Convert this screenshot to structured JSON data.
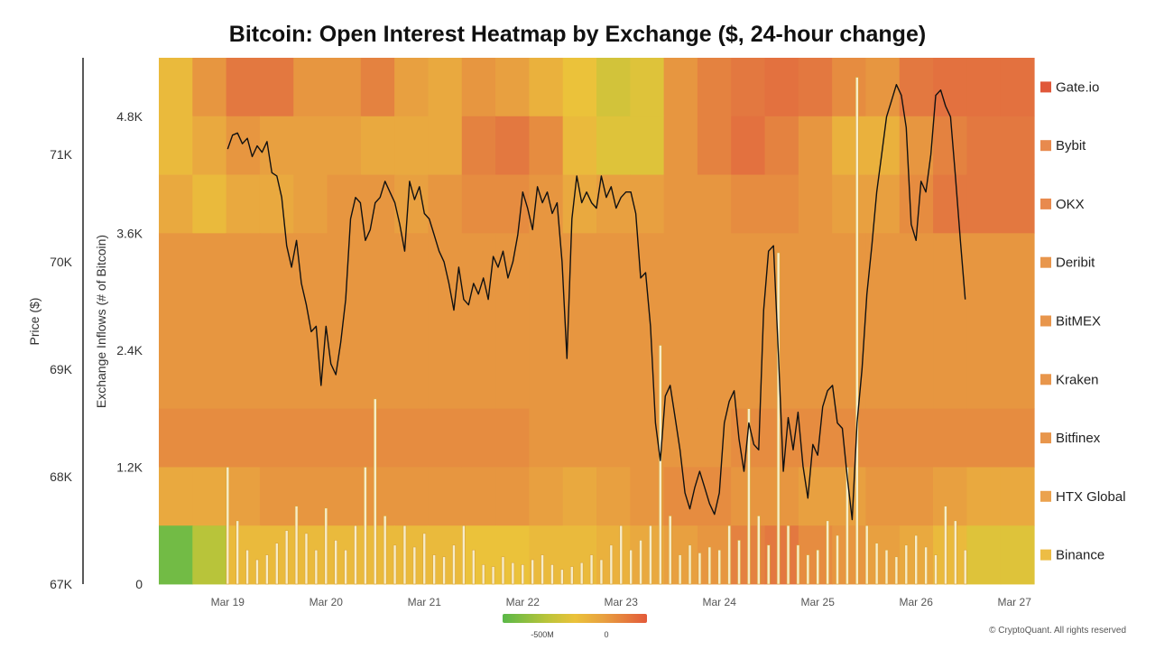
{
  "chart_data": {
    "type": "heatmap",
    "title": "Bitcoin: Open Interest Heatmap by Exchange ($, 24-hour change)",
    "y_left_label": "Price ($)",
    "y_left_ticks": [
      "67K",
      "68K",
      "69K",
      "70K",
      "71K"
    ],
    "y_left_range": [
      67000,
      71900
    ],
    "y_mid_label": "Exchange Inflows (# of Bitcoin)",
    "y_mid_ticks": [
      "0",
      "1.2K",
      "2.4K",
      "3.6K",
      "4.8K"
    ],
    "y_mid_range": [
      0,
      5400
    ],
    "x_ticks": [
      "Mar 19",
      "Mar 20",
      "Mar 21",
      "Mar 22",
      "Mar 23",
      "Mar 24",
      "Mar 25",
      "Mar 26",
      "Mar 27"
    ],
    "x_range": [
      18.3,
      27.2
    ],
    "exchanges": [
      "Gate.io",
      "Bybit",
      "OKX",
      "Deribit",
      "BitMEX",
      "Kraken",
      "Bitfinex",
      "HTX Global",
      "Binance"
    ],
    "legend_colors": [
      "#e0583a",
      "#e88a4e",
      "#e88a4e",
      "#e8964c",
      "#e8964c",
      "#e8964c",
      "#e8964c",
      "#eba24e",
      "#edbd45"
    ],
    "colorscale": {
      "stops": [
        "#5ab848",
        "#b8c43a",
        "#ebc23a",
        "#e8a040",
        "#e37840",
        "#e35a3a"
      ],
      "labels": [
        "-500M",
        "0"
      ]
    },
    "heatmap_rows": [
      {
        "exchange": "Gate.io",
        "values": [
          -0.1,
          0.3,
          0.6,
          0.6,
          0.3,
          0.3,
          0.5,
          0.2,
          0.1,
          0.3,
          0.2,
          0.0,
          -0.2,
          -0.4,
          -0.3,
          0.3,
          0.5,
          0.6,
          0.7,
          0.6,
          0.4,
          0.3,
          0.6,
          0.7,
          0.7,
          0.7
        ]
      },
      {
        "exchange": "Bybit",
        "values": [
          -0.1,
          0.1,
          0.3,
          0.2,
          0.2,
          0.2,
          0.1,
          0.1,
          0.1,
          0.5,
          0.6,
          0.4,
          -0.1,
          -0.3,
          -0.3,
          0.3,
          0.5,
          0.7,
          0.5,
          0.3,
          0.0,
          0.0,
          0.3,
          0.5,
          0.6,
          0.6
        ]
      },
      {
        "exchange": "OKX",
        "values": [
          0.1,
          -0.1,
          0.1,
          0.1,
          0.2,
          0.3,
          0.3,
          0.2,
          0.3,
          0.4,
          0.4,
          0.3,
          0.1,
          0.2,
          0.2,
          0.3,
          0.3,
          0.4,
          0.4,
          0.3,
          0.2,
          0.2,
          0.4,
          0.6,
          0.6,
          0.6
        ]
      },
      {
        "exchange": "Deribit",
        "values": [
          0.3,
          0.3,
          0.3,
          0.3,
          0.3,
          0.3,
          0.3,
          0.3,
          0.3,
          0.3,
          0.3,
          0.3,
          0.3,
          0.3,
          0.3,
          0.3,
          0.3,
          0.3,
          0.3,
          0.3,
          0.3,
          0.3,
          0.3,
          0.3,
          0.3,
          0.3
        ]
      },
      {
        "exchange": "BitMEX",
        "values": [
          0.3,
          0.3,
          0.3,
          0.3,
          0.3,
          0.3,
          0.3,
          0.3,
          0.3,
          0.3,
          0.3,
          0.3,
          0.3,
          0.3,
          0.3,
          0.3,
          0.3,
          0.3,
          0.3,
          0.3,
          0.3,
          0.3,
          0.3,
          0.3,
          0.3,
          0.3
        ]
      },
      {
        "exchange": "Kraken",
        "values": [
          0.3,
          0.3,
          0.3,
          0.3,
          0.3,
          0.3,
          0.3,
          0.3,
          0.3,
          0.3,
          0.3,
          0.3,
          0.3,
          0.3,
          0.3,
          0.3,
          0.3,
          0.3,
          0.3,
          0.3,
          0.3,
          0.3,
          0.3,
          0.3,
          0.3,
          0.3
        ]
      },
      {
        "exchange": "Bitfinex",
        "values": [
          0.4,
          0.4,
          0.4,
          0.4,
          0.4,
          0.4,
          0.4,
          0.4,
          0.4,
          0.4,
          0.4,
          0.3,
          0.3,
          0.3,
          0.3,
          0.3,
          0.3,
          0.4,
          0.4,
          0.4,
          0.4,
          0.4,
          0.4,
          0.4,
          0.4,
          0.4
        ]
      },
      {
        "exchange": "HTX Global",
        "values": [
          0.1,
          0.1,
          0.2,
          0.3,
          0.3,
          0.3,
          0.3,
          0.3,
          0.3,
          0.3,
          0.3,
          0.2,
          0.1,
          0.2,
          0.3,
          0.4,
          0.4,
          0.3,
          0.3,
          0.2,
          0.2,
          0.3,
          0.3,
          0.2,
          0.1,
          0.1
        ]
      },
      {
        "exchange": "Binance",
        "values": [
          -0.9,
          -0.6,
          -0.1,
          -0.1,
          -0.1,
          -0.1,
          -0.1,
          -0.1,
          -0.1,
          -0.2,
          -0.2,
          -0.1,
          -0.1,
          0.0,
          0.1,
          0.2,
          0.3,
          0.5,
          0.6,
          0.4,
          0.3,
          0.2,
          0.1,
          -0.1,
          -0.3,
          -0.3
        ]
      }
    ],
    "price_series": {
      "x": [
        19.0,
        19.05,
        19.1,
        19.15,
        19.2,
        19.25,
        19.3,
        19.35,
        19.4,
        19.45,
        19.5,
        19.55,
        19.6,
        19.65,
        19.7,
        19.75,
        19.8,
        19.85,
        19.9,
        19.95,
        20.0,
        20.05,
        20.1,
        20.15,
        20.2,
        20.25,
        20.3,
        20.35,
        20.4,
        20.45,
        20.5,
        20.55,
        20.6,
        20.65,
        20.7,
        20.75,
        20.8,
        20.85,
        20.9,
        20.95,
        21.0,
        21.05,
        21.1,
        21.15,
        21.2,
        21.25,
        21.3,
        21.35,
        21.4,
        21.45,
        21.5,
        21.55,
        21.6,
        21.65,
        21.7,
        21.75,
        21.8,
        21.85,
        21.9,
        21.95,
        22.0,
        22.05,
        22.1,
        22.15,
        22.2,
        22.25,
        22.3,
        22.35,
        22.4,
        22.45,
        22.5,
        22.55,
        22.6,
        22.65,
        22.7,
        22.75,
        22.8,
        22.85,
        22.9,
        22.95,
        23.0,
        23.05,
        23.1,
        23.15,
        23.2,
        23.25,
        23.3,
        23.35,
        23.4,
        23.45,
        23.5,
        23.55,
        23.6,
        23.65,
        23.7,
        23.75,
        23.8,
        23.85,
        23.9,
        23.95,
        24.0,
        24.05,
        24.1,
        24.15,
        24.2,
        24.25,
        24.3,
        24.35,
        24.4,
        24.45,
        24.5,
        24.55,
        24.6,
        24.65,
        24.7,
        24.75,
        24.8,
        24.85,
        24.9,
        24.95,
        25.0,
        25.05,
        25.1,
        25.15,
        25.2,
        25.25,
        25.3,
        25.35,
        25.4,
        25.45,
        25.5,
        25.55,
        25.6,
        25.65,
        25.7,
        25.75,
        25.8,
        25.85,
        25.9,
        25.95,
        26.0,
        26.05,
        26.1,
        26.15,
        26.2,
        26.25,
        26.3,
        26.35,
        26.4,
        26.45,
        26.5
      ],
      "y": [
        71050,
        71180,
        71200,
        71100,
        71150,
        70980,
        71080,
        71020,
        71120,
        70830,
        70800,
        70600,
        70150,
        69950,
        70200,
        69800,
        69600,
        69350,
        69400,
        68850,
        69400,
        69050,
        68950,
        69250,
        69650,
        70400,
        70600,
        70550,
        70200,
        70300,
        70550,
        70600,
        70750,
        70650,
        70550,
        70350,
        70100,
        70750,
        70580,
        70700,
        70450,
        70400,
        70250,
        70100,
        70000,
        69800,
        69550,
        69950,
        69650,
        69600,
        69800,
        69700,
        69850,
        69650,
        70050,
        69950,
        70100,
        69850,
        70000,
        70250,
        70650,
        70500,
        70300,
        70700,
        70550,
        70650,
        70450,
        70550,
        70000,
        69100,
        70400,
        70800,
        70550,
        70650,
        70550,
        70500,
        70800,
        70600,
        70700,
        70500,
        70600,
        70650,
        70650,
        70450,
        69850,
        69900,
        69400,
        68500,
        68150,
        68750,
        68850,
        68550,
        68250,
        67850,
        67700,
        67900,
        68050,
        67900,
        67750,
        67650,
        67850,
        68500,
        68700,
        68800,
        68350,
        68050,
        68500,
        68300,
        68250,
        69550,
        70100,
        70150,
        69150,
        68050,
        68550,
        68250,
        68600,
        68100,
        67800,
        68300,
        68200,
        68650,
        68800,
        68850,
        68500,
        68450,
        68000,
        67600,
        68500,
        69000,
        69700,
        70150,
        70650,
        71000,
        71350,
        71500,
        71650,
        71550,
        71250,
        70350,
        70200,
        70750,
        70650,
        71000,
        71550,
        71600,
        71450,
        71350,
        70800,
        70200,
        69650,
        69550,
        69650,
        68900,
        68500,
        68650
      ]
    },
    "inflow_bars": {
      "x": [
        19.0,
        19.1,
        19.2,
        19.3,
        19.4,
        19.5,
        19.6,
        19.7,
        19.8,
        19.9,
        20.0,
        20.1,
        20.2,
        20.3,
        20.4,
        20.5,
        20.6,
        20.7,
        20.8,
        20.9,
        21.0,
        21.1,
        21.2,
        21.3,
        21.4,
        21.5,
        21.6,
        21.7,
        21.8,
        21.9,
        22.0,
        22.1,
        22.2,
        22.3,
        22.4,
        22.5,
        22.6,
        22.7,
        22.8,
        22.9,
        23.0,
        23.1,
        23.2,
        23.3,
        23.4,
        23.5,
        23.6,
        23.7,
        23.8,
        23.9,
        24.0,
        24.1,
        24.2,
        24.3,
        24.4,
        24.5,
        24.6,
        24.7,
        24.8,
        24.9,
        25.0,
        25.1,
        25.2,
        25.3,
        25.4,
        25.5,
        25.6,
        25.7,
        25.8,
        25.9,
        26.0,
        26.1,
        26.2,
        26.3,
        26.4,
        26.5
      ],
      "values": [
        1200,
        650,
        350,
        250,
        300,
        420,
        550,
        800,
        520,
        350,
        780,
        450,
        350,
        600,
        1200,
        1900,
        700,
        400,
        600,
        380,
        520,
        300,
        280,
        400,
        600,
        350,
        200,
        180,
        280,
        220,
        200,
        250,
        300,
        200,
        150,
        180,
        220,
        300,
        250,
        400,
        600,
        350,
        450,
        600,
        2450,
        700,
        300,
        400,
        320,
        380,
        350,
        600,
        450,
        1800,
        700,
        400,
        3400,
        600,
        400,
        300,
        350,
        650,
        500,
        1200,
        5200,
        600,
        420,
        350,
        280,
        400,
        500,
        380,
        300,
        800,
        650,
        350
      ]
    }
  }
}
